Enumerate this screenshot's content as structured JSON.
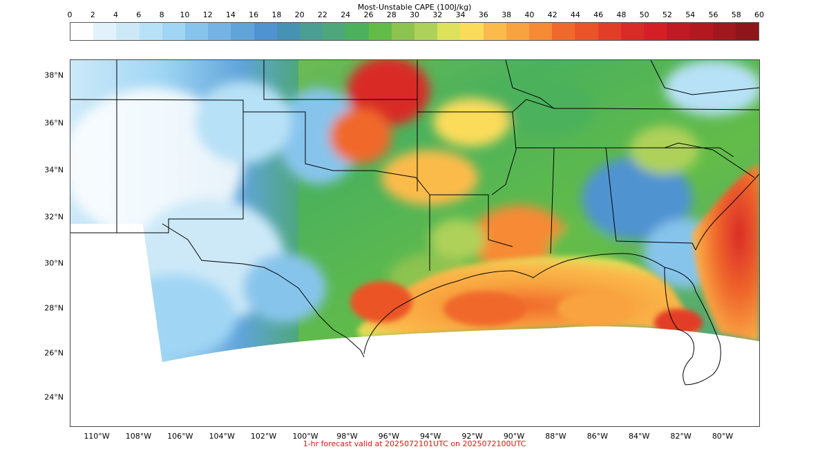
{
  "colorbar": {
    "title": "Most-Unstable CAPE (100J/kg)",
    "ticks": [
      "0",
      "2",
      "4",
      "6",
      "8",
      "10",
      "12",
      "14",
      "16",
      "18",
      "20",
      "22",
      "24",
      "26",
      "28",
      "30",
      "32",
      "34",
      "36",
      "38",
      "40",
      "42",
      "44",
      "46",
      "48",
      "50",
      "52",
      "54",
      "56",
      "58",
      "60"
    ],
    "colors": [
      "#ffffff",
      "#e1f2fc",
      "#cde9f8",
      "#b7e1f6",
      "#a0d6f4",
      "#87c4ec",
      "#74b3e4",
      "#61a4da",
      "#4f93d1",
      "#4692b4",
      "#4a9e94",
      "#4da77b",
      "#4bb15c",
      "#63bc48",
      "#8dc34f",
      "#aed15a",
      "#dde25a",
      "#fbdc5a",
      "#fbbb4c",
      "#f8a33f",
      "#f68a35",
      "#f0692c",
      "#eb5428",
      "#e23e27",
      "#d92c27",
      "#d51f27",
      "#c01a24",
      "#b31821",
      "#a0171e",
      "#8e161b"
    ]
  },
  "map": {
    "lat_labels": [
      "38°N",
      "36°N",
      "34°N",
      "32°N",
      "30°N",
      "28°N",
      "26°N",
      "24°N"
    ],
    "lon_labels": [
      "110°W",
      "108°W",
      "106°W",
      "104°W",
      "102°W",
      "100°W",
      "98°W",
      "96°W",
      "94°W",
      "92°W",
      "90°W",
      "88°W",
      "86°W",
      "84°W",
      "82°W",
      "80°W"
    ]
  },
  "caption": "1-hr forecast valid at 2025072101UTC on 2025072100UTC"
}
